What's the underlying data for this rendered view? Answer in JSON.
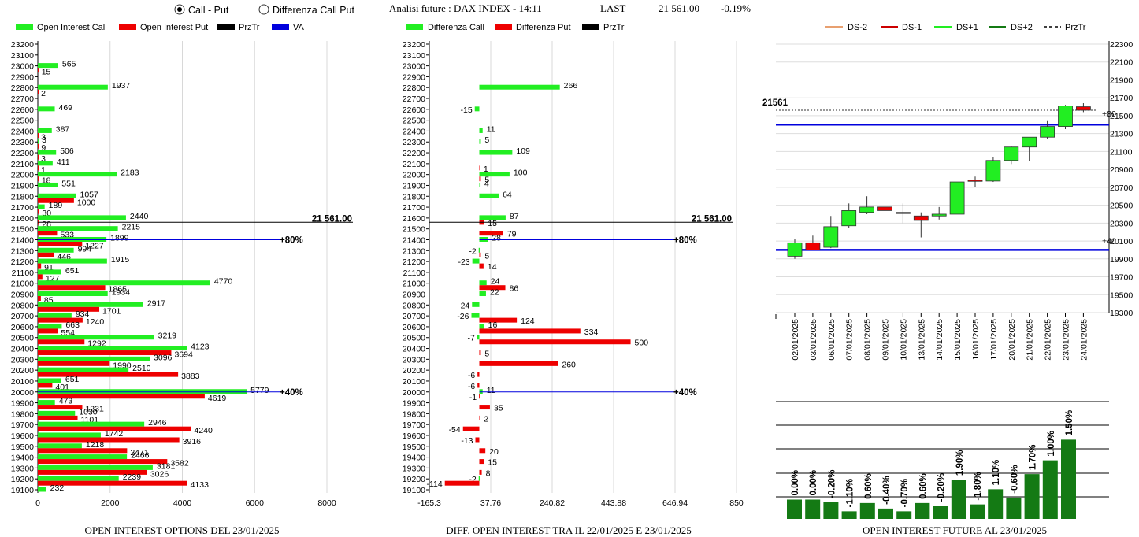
{
  "header": {
    "radio_call_put": "Call - Put",
    "radio_diff": "Differenza Call Put",
    "title": "Analisi future : DAX INDEX - 14:11",
    "last_label": "LAST",
    "last_value": "21 561.00",
    "change": "-0.19%"
  },
  "colors": {
    "green": "#22ee22",
    "red": "#ee0000",
    "dark_green": "#147a14",
    "blue": "#0000dd"
  },
  "chart_data": [
    {
      "id": "oi",
      "type": "bar",
      "orientation": "horizontal",
      "title": "OPEN INTEREST OPTIONS DEL 23/01/2025",
      "legend": [
        "Open Interest Call",
        "Open Interest Put",
        "PrzTr",
        "VA"
      ],
      "strikes": [
        23200,
        23100,
        23000,
        22900,
        22800,
        22700,
        22600,
        22500,
        22400,
        22300,
        22200,
        22100,
        22000,
        21900,
        21800,
        21700,
        21600,
        21500,
        21400,
        21300,
        21200,
        21100,
        21000,
        20900,
        20800,
        20700,
        20600,
        20500,
        20400,
        20300,
        20200,
        20100,
        20000,
        19900,
        19800,
        19700,
        19600,
        19500,
        19400,
        19300,
        19200,
        19100
      ],
      "series": [
        {
          "name": "Open Interest Call",
          "values": [
            0,
            0,
            565,
            0,
            1937,
            0,
            469,
            0,
            387,
            3,
            506,
            411,
            2183,
            551,
            1057,
            189,
            2440,
            2215,
            1899,
            994,
            1915,
            651,
            4770,
            1934,
            2917,
            934,
            663,
            3219,
            4123,
            3096,
            2510,
            651,
            5779,
            473,
            1030,
            2946,
            1742,
            1218,
            2466,
            3181,
            2239,
            232
          ]
        },
        {
          "name": "Open Interest Put",
          "values": [
            0,
            0,
            15,
            0,
            2,
            0,
            0,
            0,
            3,
            9,
            3,
            1,
            18,
            0,
            1000,
            30,
            28,
            533,
            1227,
            446,
            91,
            127,
            1865,
            85,
            1701,
            1240,
            554,
            1292,
            3694,
            1990,
            3883,
            401,
            4619,
            1231,
            1101,
            4240,
            3916,
            2471,
            3582,
            3026,
            4133,
            0
          ]
        }
      ],
      "x_ticks": [
        "0",
        "2000",
        "4000",
        "6000",
        "8000"
      ],
      "xlim": [
        0,
        8000
      ],
      "ref_lines": [
        {
          "strike": 21561,
          "label": "21 561.00"
        },
        {
          "strike": 21400,
          "label": "+80%"
        },
        {
          "strike": 20000,
          "label": "+40%"
        }
      ]
    },
    {
      "id": "diff",
      "type": "bar",
      "orientation": "horizontal",
      "title": "DIFF. OPEN INTEREST TRA IL 22/01/2025 E 23/01/2025",
      "legend": [
        "Differenza Call",
        "Differenza Put",
        "PrzTr"
      ],
      "strikes": [
        23200,
        23100,
        23000,
        22900,
        22800,
        22700,
        22600,
        22500,
        22400,
        22300,
        22200,
        22100,
        22000,
        21900,
        21800,
        21700,
        21600,
        21500,
        21400,
        21300,
        21200,
        21100,
        21000,
        20900,
        20800,
        20700,
        20600,
        20500,
        20400,
        20300,
        20200,
        20100,
        20000,
        19900,
        19800,
        19700,
        19600,
        19500,
        19400,
        19300,
        19200,
        19100
      ],
      "series": [
        {
          "name": "Differenza Call",
          "values": [
            null,
            null,
            null,
            null,
            266,
            null,
            -15,
            null,
            11,
            5,
            109,
            null,
            100,
            4,
            64,
            null,
            87,
            null,
            28,
            -2,
            -23,
            null,
            24,
            22,
            -24,
            -26,
            16,
            -7,
            null,
            null,
            null,
            null,
            11,
            null,
            null,
            null,
            null,
            null,
            null,
            null,
            -2,
            null
          ]
        },
        {
          "name": "Differenza Put",
          "values": [
            null,
            null,
            null,
            null,
            null,
            null,
            null,
            null,
            null,
            null,
            null,
            1,
            5,
            null,
            null,
            null,
            15,
            79,
            null,
            5,
            14,
            null,
            86,
            null,
            null,
            124,
            334,
            500,
            5,
            260,
            -6,
            -6,
            -1,
            35,
            2,
            -54,
            -13,
            20,
            15,
            8,
            -114,
            null
          ]
        }
      ],
      "x_ticks": [
        "-165.3",
        "37.76",
        "240.82",
        "443.88",
        "646.94",
        "850"
      ],
      "xlim": [
        -165.3,
        850
      ],
      "ref_lines": [
        {
          "strike": 21561,
          "label": "21 561.00"
        },
        {
          "strike": 21400,
          "label": "+80%"
        },
        {
          "strike": 20000,
          "label": "+40%"
        }
      ]
    },
    {
      "id": "candles",
      "type": "candlestick",
      "legend": [
        "DS-2",
        "DS-1",
        "DS+1",
        "DS+2",
        "PrzTr"
      ],
      "dates": [
        "02/01/2025",
        "03/01/2025",
        "06/01/2025",
        "07/01/2025",
        "08/01/2025",
        "09/01/2025",
        "10/01/2025",
        "13/01/2025",
        "14/01/2025",
        "15/01/2025",
        "16/01/2025",
        "17/01/2025",
        "20/01/2025",
        "21/01/2025",
        "22/01/2025",
        "23/01/2025",
        "24/01/2025"
      ],
      "ohlc": [
        [
          19930,
          20120,
          19900,
          20080
        ],
        [
          20080,
          20160,
          20000,
          20000
        ],
        [
          20030,
          20380,
          20020,
          20260
        ],
        [
          20270,
          20520,
          20250,
          20440
        ],
        [
          20420,
          20600,
          20400,
          20480
        ],
        [
          20480,
          20490,
          20400,
          20440
        ],
        [
          20420,
          20520,
          20300,
          20410
        ],
        [
          20380,
          20420,
          20140,
          20330
        ],
        [
          20380,
          20480,
          20340,
          20400
        ],
        [
          20400,
          20760,
          20400,
          20760
        ],
        [
          20780,
          20820,
          20700,
          20770
        ],
        [
          20770,
          21040,
          20760,
          21000
        ],
        [
          21000,
          21160,
          20960,
          21150
        ],
        [
          21150,
          21260,
          20990,
          21260
        ],
        [
          21260,
          21440,
          21240,
          21380
        ],
        [
          21380,
          21620,
          21350,
          21610
        ],
        [
          21600,
          21640,
          21540,
          21561
        ]
      ],
      "y_ticks": [
        "22300",
        "22100",
        "21900",
        "21700",
        "21500",
        "21300",
        "21100",
        "20900",
        "20700",
        "20500",
        "20300",
        "20100",
        "19900",
        "19700",
        "19500",
        "19300"
      ],
      "ylim": [
        19300,
        22300
      ],
      "last_label": "21561",
      "right_labels": [
        "+80",
        "+40"
      ],
      "hlines": [
        21400,
        20000
      ]
    },
    {
      "id": "oi_future",
      "type": "bar",
      "title": "OPEN INTEREST FUTURE AL 23/01/2025",
      "labels": [
        "0.00%",
        "0.00%",
        "-0.20%",
        "-1.10%",
        "0.60%",
        "-0.40%",
        "-0.70%",
        "0.60%",
        "-0.20%",
        "1.90%",
        "-1.80%",
        "1.10%",
        "-0.60%",
        "1.70%",
        "1.00%",
        "1.50%"
      ],
      "values": [
        0.0,
        0.0,
        -0.2,
        -1.1,
        0.6,
        -0.4,
        -0.7,
        0.6,
        -0.2,
        1.9,
        -1.8,
        1.1,
        -0.6,
        1.7,
        1.0,
        1.5
      ]
    }
  ]
}
